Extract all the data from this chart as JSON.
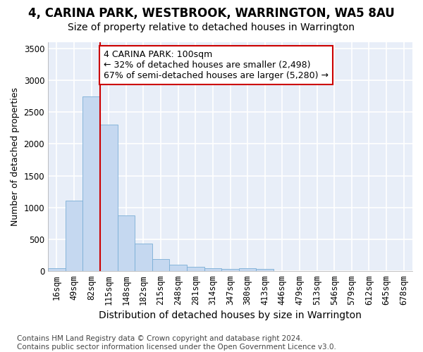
{
  "title": "4, CARINA PARK, WESTBROOK, WARRINGTON, WA5 8AU",
  "subtitle": "Size of property relative to detached houses in Warrington",
  "xlabel": "Distribution of detached houses by size in Warrington",
  "ylabel": "Number of detached properties",
  "categories": [
    "16sqm",
    "49sqm",
    "82sqm",
    "115sqm",
    "148sqm",
    "182sqm",
    "215sqm",
    "248sqm",
    "281sqm",
    "314sqm",
    "347sqm",
    "380sqm",
    "413sqm",
    "446sqm",
    "479sqm",
    "513sqm",
    "546sqm",
    "579sqm",
    "612sqm",
    "645sqm",
    "678sqm"
  ],
  "values": [
    50,
    1110,
    2750,
    2300,
    880,
    430,
    185,
    100,
    65,
    50,
    30,
    50,
    30,
    5,
    3,
    2,
    1,
    1,
    0,
    0,
    0
  ],
  "bar_color": "#c5d8f0",
  "bar_edge_color": "#7aaed6",
  "background_color": "#e8eef8",
  "grid_color": "#ffffff",
  "vline_color": "#cc0000",
  "vline_x_index": 2.5,
  "annotation_text": "4 CARINA PARK: 100sqm\n← 32% of detached houses are smaller (2,498)\n67% of semi-detached houses are larger (5,280) →",
  "annotation_box_color": "#ffffff",
  "annotation_box_edge": "#cc0000",
  "ylim": [
    0,
    3600
  ],
  "yticks": [
    0,
    500,
    1000,
    1500,
    2000,
    2500,
    3000,
    3500
  ],
  "footer": "Contains HM Land Registry data © Crown copyright and database right 2024.\nContains public sector information licensed under the Open Government Licence v3.0.",
  "title_fontsize": 12,
  "subtitle_fontsize": 10,
  "xlabel_fontsize": 10,
  "ylabel_fontsize": 9,
  "tick_fontsize": 8.5,
  "annotation_fontsize": 9,
  "footer_fontsize": 7.5
}
